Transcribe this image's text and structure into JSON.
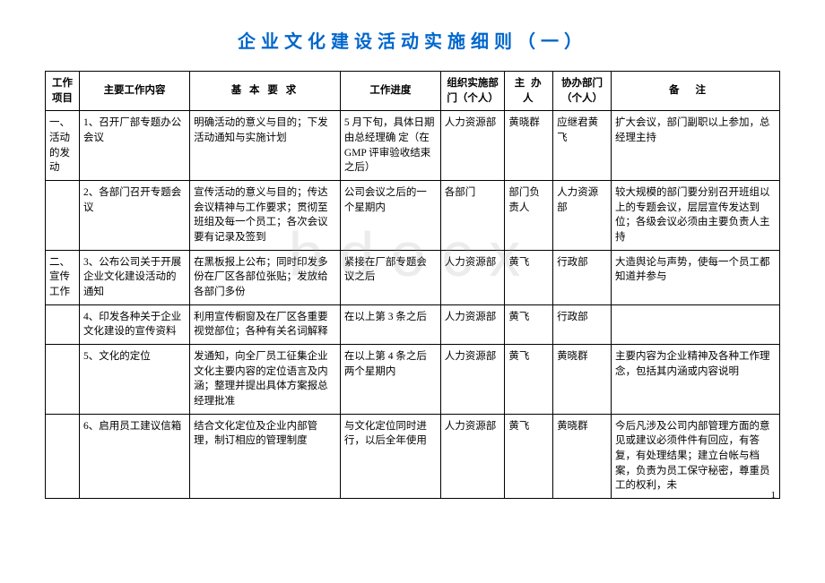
{
  "title": "企业文化建设活动实施细则（一）",
  "watermark": "bdocx",
  "page_number": "1",
  "headers": {
    "project": "工作项目",
    "content": "主要工作内容",
    "requirement": "基 本 要 求",
    "progress": "工作进度",
    "dept": "组织实施部门（个人）",
    "owner": "主 办人",
    "assist": "协办部门（个人）",
    "note": "备注"
  },
  "rows": [
    {
      "project": "一、活动的发动",
      "content": "1、召开厂部专题办公会议",
      "requirement": "明确活动的意义与目的；下发活动通知与实施计划",
      "progress": "5 月下旬，具体日期由总经理确 定（在 GMP 评审验收结束之后）",
      "dept": "人力资源部",
      "owner": "黄晓群",
      "assist": "应继君黄飞",
      "note": "扩大会议，部门副职以上参加，总经理主持"
    },
    {
      "project": "",
      "content": "2、各部门召开专题会议",
      "requirement": "宣传活动的意义与目的；传达会议精神与工作要求；贯彻至班组及每一个员工；各次会议要有记录及签到",
      "progress": "公司会议之后的一个星期内",
      "dept": "各部门",
      "owner": "部门负责人",
      "assist": "人力资源部",
      "note": "较大规模的部门要分别召开班组以上的专题会议，层层宣传发达到位；各级会议必须由主要负责人主持"
    },
    {
      "project": "二、宣传工作",
      "content": "3、公布公司关于开展企业文化建设活动的通知",
      "requirement": "在黑板报上公布；同时印发多份在厂区各部位张贴；发放给各部门多份",
      "progress": "紧接在厂部专题会议之后",
      "dept": "人力资源部",
      "owner": "黄飞",
      "assist": "行政部",
      "note": "大造舆论与声势，使每一个员工都知道并参与"
    },
    {
      "project": "",
      "content": "4、印发各种关于企业文化建设的宣传资料",
      "requirement": "利用宣传橱窗及在厂区各重要视觉部位；各种有关名词解释",
      "progress": "在以上第 3 条之后",
      "dept": "人力资源部",
      "owner": "黄飞",
      "assist": "行政部",
      "note": ""
    },
    {
      "project": "",
      "content": "5、文化的定位",
      "requirement": "发通知，向全厂员工征集企业文化主要内容的定位语言及内涵；整理并提出具体方案报总经理批准",
      "progress": "在以上第 4 条之后两个星期内",
      "dept": "人力资源部",
      "owner": "黄飞",
      "assist": "黄晓群",
      "note": "主要内容为企业精神及各种工作理念，包括其内涵或内容说明"
    },
    {
      "project": "",
      "content": "6、启用员工建议信箱",
      "requirement": "结合文化定位及企业内部管理，制订相应的管理制度",
      "progress": "与文化定位同时进行，以后全年使用",
      "dept": "人力资源部",
      "owner": "黄飞",
      "assist": "黄晓群",
      "note": "今后凡涉及公司内部管理方面的意见或建议必须件件有回应，有答复，有处理结果；建立台帐与档案，负责为员工保守秘密，尊重员工的权利，未"
    }
  ]
}
